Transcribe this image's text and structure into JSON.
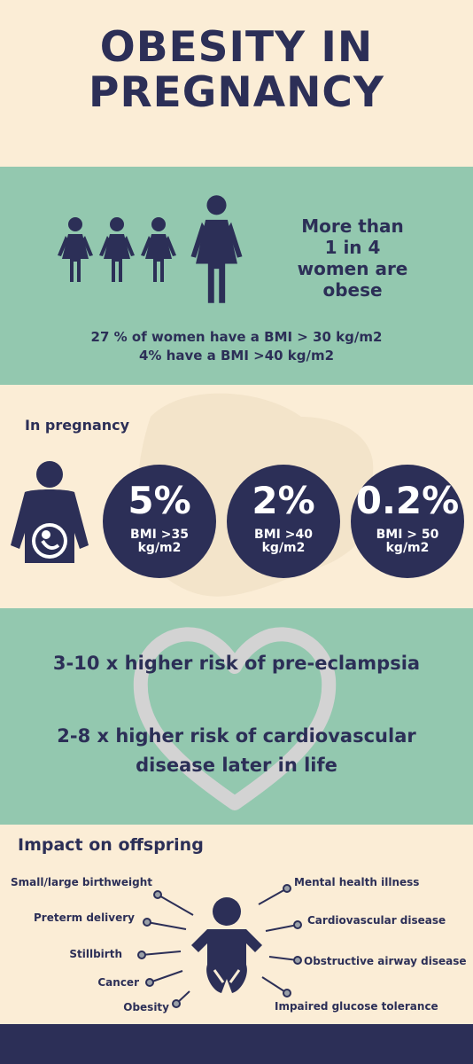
{
  "header": {
    "title_line1": "OBESITY IN",
    "title_line2": "PREGNANCY"
  },
  "prevalence": {
    "headline": "More than\n1 in 4\nwomen are\nobese",
    "line1": "27 % of women have a BMI > 30 kg/m2",
    "line2": "4% have a BMI >40 kg/m2"
  },
  "pregnancy": {
    "label": "In pregnancy",
    "stats": [
      {
        "percent": "5%",
        "bmi": "BMI >35\nkg/m2"
      },
      {
        "percent": "2%",
        "bmi": "BMI >40\nkg/m2"
      },
      {
        "percent": "0.2%",
        "bmi": "BMI > 50\nkg/m2"
      }
    ]
  },
  "risks": {
    "line1": "3-10 x higher risk of pre-eclampsia",
    "line2": "2-8 x higher risk of cardiovascular\ndisease later in life"
  },
  "offspring": {
    "label": "Impact on offspring",
    "left": [
      "Small/large birthweight",
      "Preterm delivery",
      "Stillbirth",
      "Cancer",
      "Obesity"
    ],
    "right": [
      "Mental health illness",
      "Cardiovascular disease",
      "Obstructive airway disease",
      "Impaired glucose tolerance"
    ]
  },
  "colors": {
    "navy": "#2c2f57",
    "green": "#93c8af",
    "cream": "#fbedd6"
  },
  "icons": [
    "woman-icon",
    "pregnant-woman-icon",
    "heart-icon",
    "baby-icon"
  ]
}
